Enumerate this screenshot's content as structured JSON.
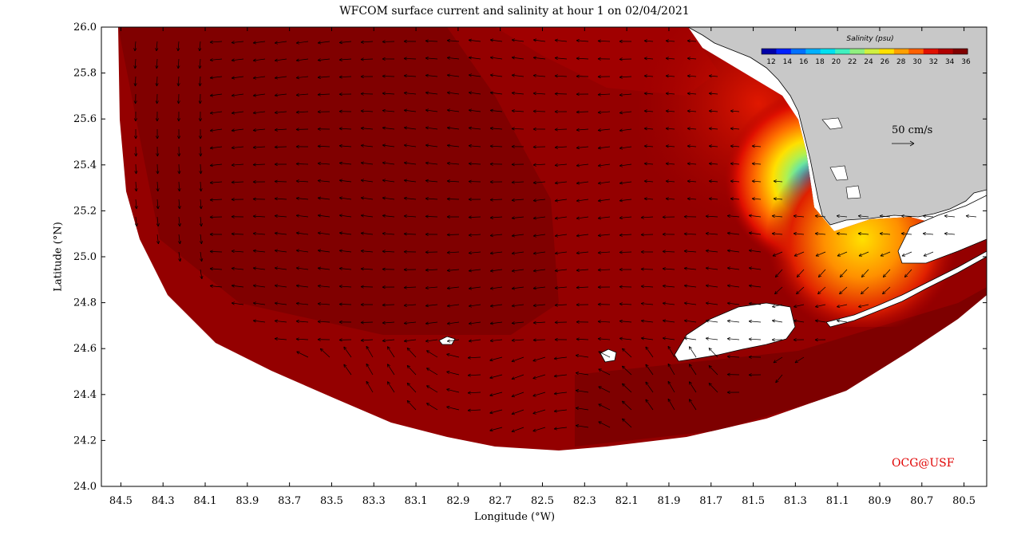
{
  "title": "WFCOM surface current and salinity at hour 1 on 02/04/2021",
  "xlabel": "Longitude (°W)",
  "ylabel": "Latitude (°N)",
  "x_ticks": [
    "84.5",
    "84.3",
    "84.1",
    "83.9",
    "83.7",
    "83.5",
    "83.3",
    "83.1",
    "82.9",
    "82.7",
    "82.5",
    "82.3",
    "82.1",
    "81.9",
    "81.7",
    "81.5",
    "81.3",
    "81.1",
    "80.9",
    "80.7",
    "80.5"
  ],
  "y_ticks": [
    "26.0",
    "25.8",
    "25.6",
    "25.4",
    "25.2",
    "25.0",
    "24.8",
    "24.6",
    "24.4",
    "24.2",
    "24.0"
  ],
  "colorbar": {
    "title": "Salinity (psu)",
    "ticks": [
      "12",
      "14",
      "16",
      "18",
      "20",
      "22",
      "24",
      "26",
      "28",
      "30",
      "32",
      "34",
      "36"
    ],
    "colors": [
      "#0000a8",
      "#0020ff",
      "#0070ff",
      "#00b0ff",
      "#00e0f0",
      "#40f0c0",
      "#90f080",
      "#d0f040",
      "#ffe000",
      "#ffa000",
      "#ff6000",
      "#e01000",
      "#b00000",
      "#800000"
    ]
  },
  "scale_vector": "50 cm/s",
  "credit": "OCG@USF",
  "colors": {
    "land": "#c8c8c8",
    "ocean_deep": "#7a0000",
    "ocean_mid": "#920000",
    "credit": "#e00000"
  },
  "chart_data": {
    "type": "heatmap",
    "title": "WFCOM surface current and salinity at hour 1 on 02/04/2021",
    "xlabel": "Longitude (°W)",
    "ylabel": "Latitude (°N)",
    "xlim": [
      84.5,
      80.4
    ],
    "ylim": [
      24.0,
      26.0
    ],
    "colorbar_range": [
      12,
      36
    ],
    "scale_vector": "50 cm/s"
  }
}
